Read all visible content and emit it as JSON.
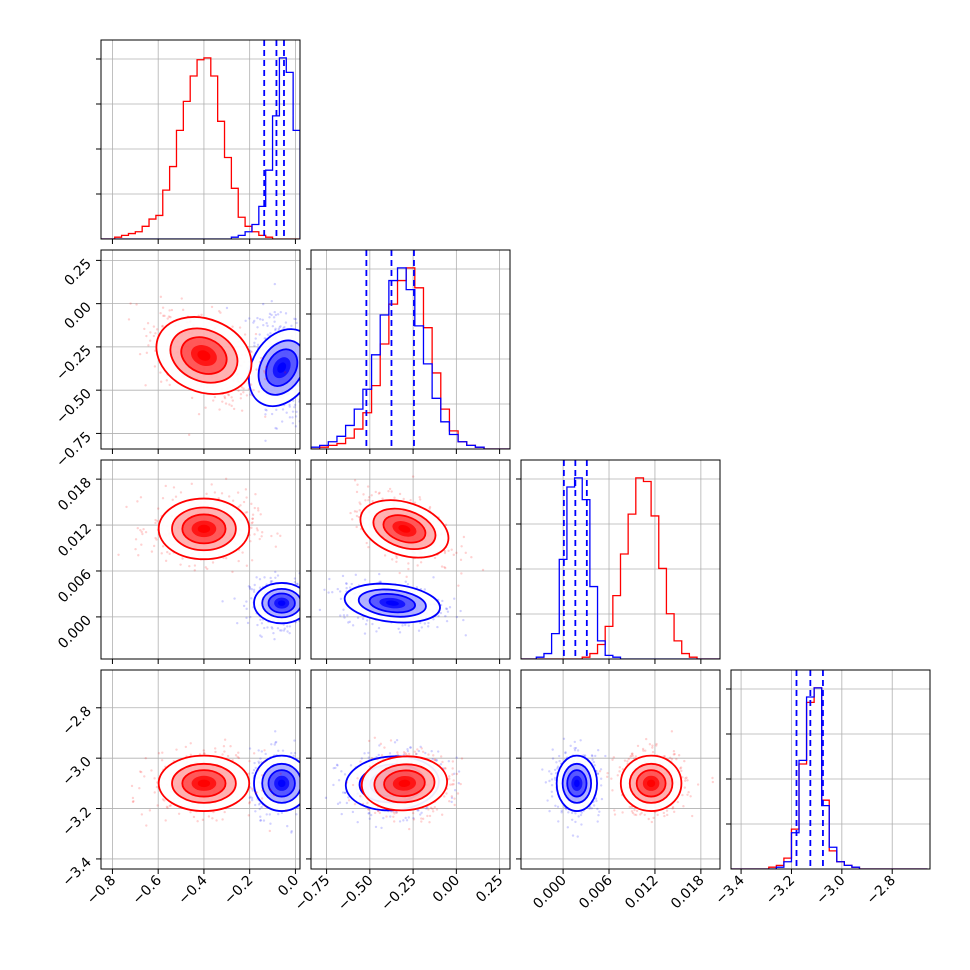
{
  "figure": {
    "kind": "corner-plot"
  },
  "colors": {
    "blue": "#0000ff",
    "red": "#ff0000",
    "grid": "#b0b0b0",
    "axes": "#000000"
  },
  "chart_data": {
    "type": "corner",
    "parameters": [
      {
        "ticks": [
          "−0.8",
          "−0.6",
          "−0.4",
          "−0.2",
          "0.0"
        ],
        "tick_values": [
          -0.8,
          -0.6,
          -0.4,
          -0.2,
          0.0
        ],
        "range": [
          -0.85,
          0.02
        ]
      },
      {
        "ticks": [
          "−0.75",
          "−0.50",
          "−0.25",
          "0.00",
          "0.25"
        ],
        "tick_values": [
          -0.75,
          -0.5,
          -0.25,
          0.0,
          0.25
        ],
        "range": [
          -0.84,
          0.31
        ]
      },
      {
        "ticks": [
          "0.000",
          "0.006",
          "0.012",
          "0.018"
        ],
        "tick_values": [
          0.0,
          0.006,
          0.012,
          0.018
        ],
        "range": [
          -0.0055,
          0.0205
        ]
      },
      {
        "ticks": [
          "−3.4",
          "−3.2",
          "−3.0",
          "−2.8"
        ],
        "tick_values": [
          -3.4,
          -3.2,
          -3.0,
          -2.8
        ],
        "range": [
          -3.44,
          -2.65
        ]
      }
    ],
    "series": [
      {
        "color": "blue",
        "means": [
          -0.06,
          -0.37,
          0.0018,
          -3.1
        ],
        "sds": [
          0.055,
          0.12,
          0.0012,
          0.05
        ],
        "corr": [
          [
            1,
            -0.35,
            0,
            0
          ],
          [
            -0.35,
            1,
            -0.25,
            0.1
          ],
          [
            0,
            -0.25,
            1,
            0
          ],
          [
            0,
            0.1,
            0,
            1
          ]
        ],
        "quantiles_param1": [
          -0.1365,
          -0.083,
          -0.05
        ]
      },
      {
        "color": "red",
        "means": [
          -0.4,
          -0.3,
          0.0115,
          -3.1
        ],
        "sds": [
          0.09,
          0.11,
          0.0018,
          0.05
        ],
        "corr": [
          [
            1,
            -0.45,
            0,
            0
          ],
          [
            -0.45,
            1,
            -0.45,
            0.1
          ],
          [
            0,
            -0.45,
            1,
            0
          ],
          [
            0,
            0.1,
            0,
            1
          ]
        ]
      }
    ],
    "quantiles_blue": {
      "param1": [
        -0.1365,
        -0.083,
        -0.05
      ],
      "param2": [
        -0.52,
        -0.375,
        -0.245
      ],
      "param3": [
        0.0001,
        0.0016,
        0.0031
      ],
      "param4": [
        -3.18,
        -3.125,
        -3.075
      ]
    },
    "histograms": {
      "param1": {
        "bin_edges": [
          -0.85,
          -0.82,
          -0.79,
          -0.76,
          -0.73,
          -0.7,
          -0.67,
          -0.64,
          -0.61,
          -0.58,
          -0.55,
          -0.52,
          -0.49,
          -0.46,
          -0.43,
          -0.4,
          -0.37,
          -0.34,
          -0.31,
          -0.28,
          -0.25,
          -0.22,
          -0.19,
          -0.16,
          -0.13,
          -0.1,
          -0.07,
          -0.04,
          -0.01,
          0.02
        ],
        "red": [
          0,
          0,
          1,
          2,
          3,
          4,
          7,
          11,
          13,
          27,
          40,
          60,
          76,
          90,
          99,
          100,
          90,
          65,
          45,
          28,
          12,
          7,
          4,
          2,
          1,
          0,
          0,
          0,
          0
        ],
        "blue": [
          0,
          0,
          0,
          0,
          0,
          0,
          0,
          0,
          0,
          0,
          0,
          0,
          0,
          0,
          0,
          0,
          0,
          0,
          0,
          1,
          2,
          4,
          8,
          18,
          38,
          68,
          100,
          92,
          60
        ]
      },
      "param2": {
        "bin_edges": [
          -0.84,
          -0.79,
          -0.74,
          -0.69,
          -0.64,
          -0.59,
          -0.54,
          -0.49,
          -0.44,
          -0.39,
          -0.34,
          -0.29,
          -0.24,
          -0.19,
          -0.14,
          -0.09,
          -0.04,
          0.01,
          0.06,
          0.11,
          0.16,
          0.21,
          0.26,
          0.31
        ],
        "blue": [
          1,
          2,
          4,
          7,
          13,
          22,
          33,
          52,
          74,
          93,
          100,
          88,
          68,
          47,
          28,
          15,
          8,
          4,
          2,
          1,
          0,
          0,
          0
        ],
        "red": [
          0,
          1,
          2,
          3,
          6,
          11,
          20,
          35,
          58,
          80,
          93,
          100,
          89,
          67,
          42,
          22,
          10,
          4,
          2,
          1,
          0,
          0,
          0
        ]
      },
      "param3": {
        "bin_edges": [
          -0.0055,
          -0.0045,
          -0.0035,
          -0.0025,
          -0.0015,
          -0.0005,
          0.0005,
          0.0015,
          0.0025,
          0.0035,
          0.0045,
          0.0055,
          0.0065,
          0.0075,
          0.0085,
          0.0095,
          0.0105,
          0.0115,
          0.0125,
          0.0135,
          0.0145,
          0.0155,
          0.0165,
          0.0175,
          0.0185,
          0.0195,
          0.0205
        ],
        "blue": [
          0,
          0,
          1,
          3,
          14,
          55,
          95,
          100,
          88,
          40,
          10,
          2,
          1,
          0,
          0,
          0,
          0,
          0,
          0,
          0,
          0,
          0,
          0,
          0,
          0,
          0
        ],
        "red": [
          0,
          0,
          0,
          0,
          0,
          0,
          0,
          0,
          1,
          3,
          8,
          18,
          35,
          58,
          80,
          100,
          98,
          79,
          50,
          25,
          10,
          3,
          1,
          0,
          0,
          0
        ]
      },
      "param4": {
        "bin_edges": [
          -3.44,
          -3.41,
          -3.38,
          -3.35,
          -3.32,
          -3.29,
          -3.26,
          -3.23,
          -3.2,
          -3.17,
          -3.14,
          -3.11,
          -3.08,
          -3.05,
          -3.02,
          -2.99,
          -2.96,
          -2.93,
          -2.9,
          -2.87,
          -2.84,
          -2.81,
          -2.78,
          -2.75,
          -2.72,
          -2.69,
          -2.66
        ],
        "blue": [
          0,
          0,
          0,
          0,
          0,
          0,
          1,
          4,
          20,
          60,
          95,
          100,
          35,
          12,
          4,
          2,
          1,
          0,
          0,
          0,
          0,
          0,
          0,
          0,
          0,
          0
        ],
        "red": [
          0,
          0,
          0,
          0,
          0,
          1,
          2,
          6,
          22,
          58,
          92,
          100,
          38,
          10,
          4,
          2,
          1,
          0,
          0,
          0,
          0,
          0,
          0,
          0,
          0,
          0
        ]
      }
    },
    "grid": true
  }
}
